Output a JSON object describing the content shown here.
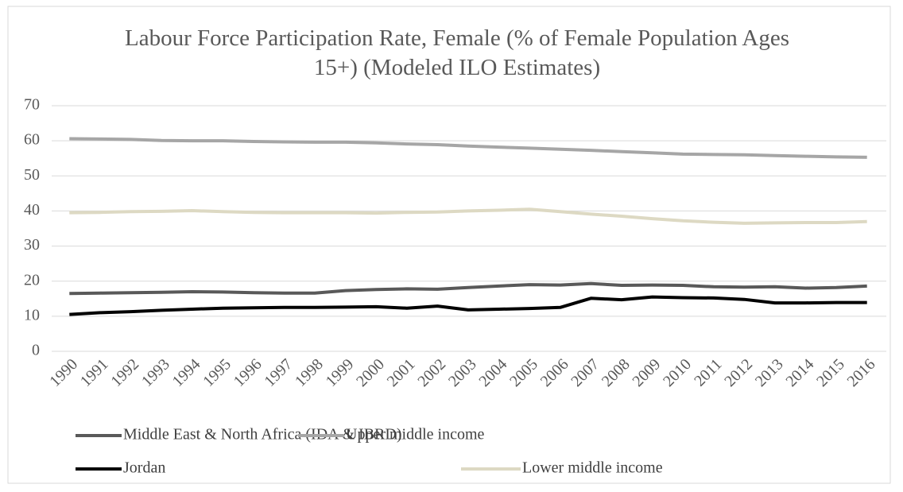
{
  "chart_data": {
    "type": "line",
    "title": "Labour Force Participation Rate, Female (% of Female Population Ages 15+) (Modeled ILO Estimates)",
    "categories": [
      "1990",
      "1991",
      "1992",
      "1993",
      "1994",
      "1995",
      "1996",
      "1997",
      "1998",
      "1999",
      "2000",
      "2001",
      "2002",
      "2003",
      "2004",
      "2005",
      "2006",
      "2007",
      "2008",
      "2009",
      "2010",
      "2011",
      "2012",
      "2013",
      "2014",
      "2015",
      "2016"
    ],
    "series": [
      {
        "name": "Middle East & North Africa (IDA & IBRD)",
        "color": "#595959",
        "values": [
          16.5,
          16.6,
          16.7,
          16.8,
          17.0,
          16.9,
          16.7,
          16.6,
          16.6,
          17.3,
          17.6,
          17.8,
          17.7,
          18.2,
          18.6,
          19.0,
          18.9,
          19.3,
          18.8,
          18.9,
          18.8,
          18.4,
          18.3,
          18.4,
          18.0,
          18.2,
          18.6
        ]
      },
      {
        "name": "Upper middle income",
        "color": "#a6a6a6",
        "values": [
          60.6,
          60.5,
          60.4,
          60.1,
          60.0,
          60.0,
          59.8,
          59.7,
          59.6,
          59.6,
          59.4,
          59.1,
          58.9,
          58.5,
          58.2,
          57.9,
          57.6,
          57.3,
          56.9,
          56.6,
          56.2,
          56.1,
          56.0,
          55.8,
          55.6,
          55.4,
          55.3
        ]
      },
      {
        "name": "Jordan",
        "color": "#000000",
        "values": [
          10.5,
          11.0,
          11.3,
          11.7,
          12.0,
          12.3,
          12.4,
          12.5,
          12.5,
          12.6,
          12.7,
          12.3,
          12.9,
          11.8,
          12.0,
          12.2,
          12.5,
          15.1,
          14.7,
          15.5,
          15.3,
          15.2,
          14.8,
          13.8,
          13.8,
          13.9,
          13.9
        ]
      },
      {
        "name": "Lower middle income",
        "color": "#ddd9c3",
        "values": [
          39.5,
          39.6,
          39.8,
          39.9,
          40.1,
          39.8,
          39.6,
          39.5,
          39.5,
          39.5,
          39.4,
          39.6,
          39.7,
          40.0,
          40.2,
          40.5,
          39.8,
          39.1,
          38.5,
          37.8,
          37.2,
          36.8,
          36.5,
          36.6,
          36.7,
          36.7,
          37.0
        ]
      }
    ],
    "ylim": [
      0,
      70
    ],
    "yticks": [
      0,
      10,
      20,
      30,
      40,
      50,
      60,
      70
    ],
    "grid": true
  }
}
